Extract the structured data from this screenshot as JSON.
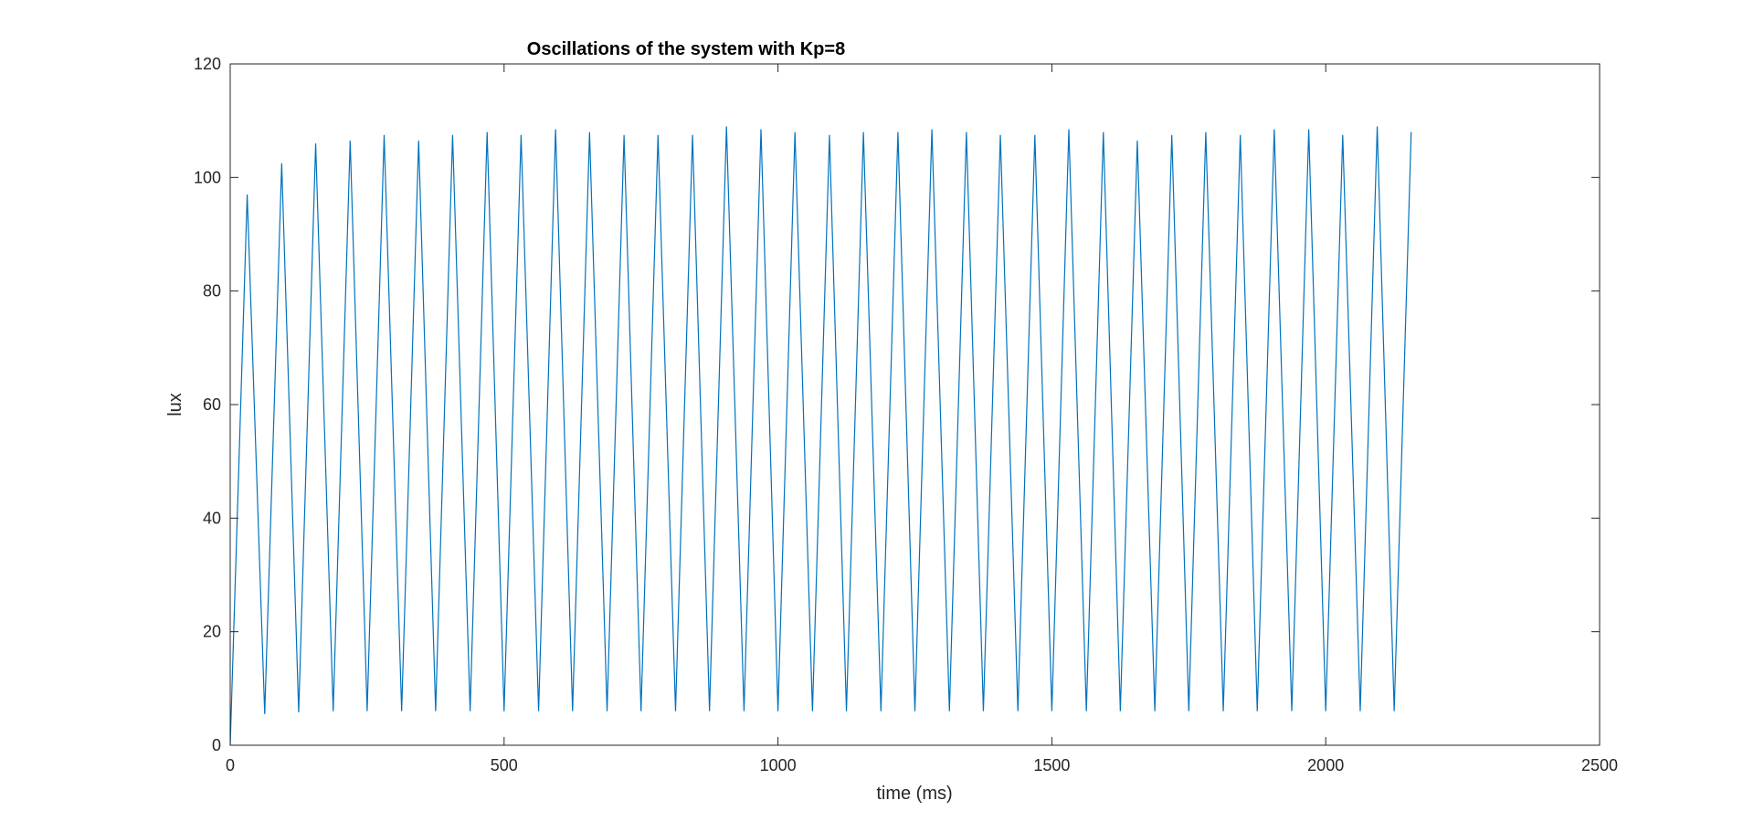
{
  "chart_data": {
    "type": "line",
    "title": "Oscillations of the system with Kp=8",
    "xlabel": "time (ms)",
    "ylabel": "lux",
    "xlim": [
      0,
      2500
    ],
    "ylim": [
      0,
      120
    ],
    "xticks": [
      0,
      500,
      1000,
      1500,
      2000,
      2500
    ],
    "yticks": [
      0,
      20,
      40,
      60,
      80,
      100,
      120
    ],
    "xtick_labels": [
      "0",
      "500",
      "1000",
      "1500",
      "2000",
      "2500"
    ],
    "ytick_labels": [
      "0",
      "20",
      "40",
      "60",
      "80",
      "100",
      "120"
    ],
    "grid": false,
    "legend": "none",
    "line_color": "#0072BD",
    "series": [
      {
        "x": [
          0,
          31,
          63,
          94,
          125,
          156,
          188,
          219,
          250,
          281,
          313,
          344,
          375,
          406,
          438,
          469,
          500,
          531,
          563,
          594,
          625,
          656,
          688,
          719,
          750,
          781,
          813,
          844,
          875,
          906,
          938,
          969,
          1000,
          1031,
          1063,
          1094,
          1125,
          1156,
          1188,
          1219,
          1250,
          1281,
          1313,
          1344,
          1375,
          1406,
          1438,
          1469,
          1500,
          1531,
          1563,
          1594,
          1625,
          1656,
          1688,
          1719,
          1750,
          1781,
          1813,
          1844,
          1875,
          1906,
          1938,
          1969,
          2000,
          2031,
          2063,
          2094,
          2125,
          2156
        ],
        "y": [
          0,
          97,
          5.5,
          102.5,
          5.8,
          106,
          6,
          106.5,
          6,
          107.5,
          6,
          106.5,
          6,
          107.5,
          6,
          108,
          6,
          107.5,
          6,
          108.5,
          6,
          108,
          6,
          107.5,
          6,
          107.5,
          6,
          107.5,
          6,
          109,
          6,
          108.5,
          6,
          108,
          6,
          107.5,
          6,
          108,
          6,
          108,
          6,
          108.5,
          6,
          108,
          6,
          107.5,
          6,
          107.5,
          6,
          108.5,
          6,
          108,
          6,
          106.5,
          6,
          107.5,
          6,
          108,
          6,
          107.5,
          6,
          108.5,
          6,
          108.5,
          6,
          107.5,
          6,
          109,
          6,
          108
        ]
      }
    ]
  }
}
